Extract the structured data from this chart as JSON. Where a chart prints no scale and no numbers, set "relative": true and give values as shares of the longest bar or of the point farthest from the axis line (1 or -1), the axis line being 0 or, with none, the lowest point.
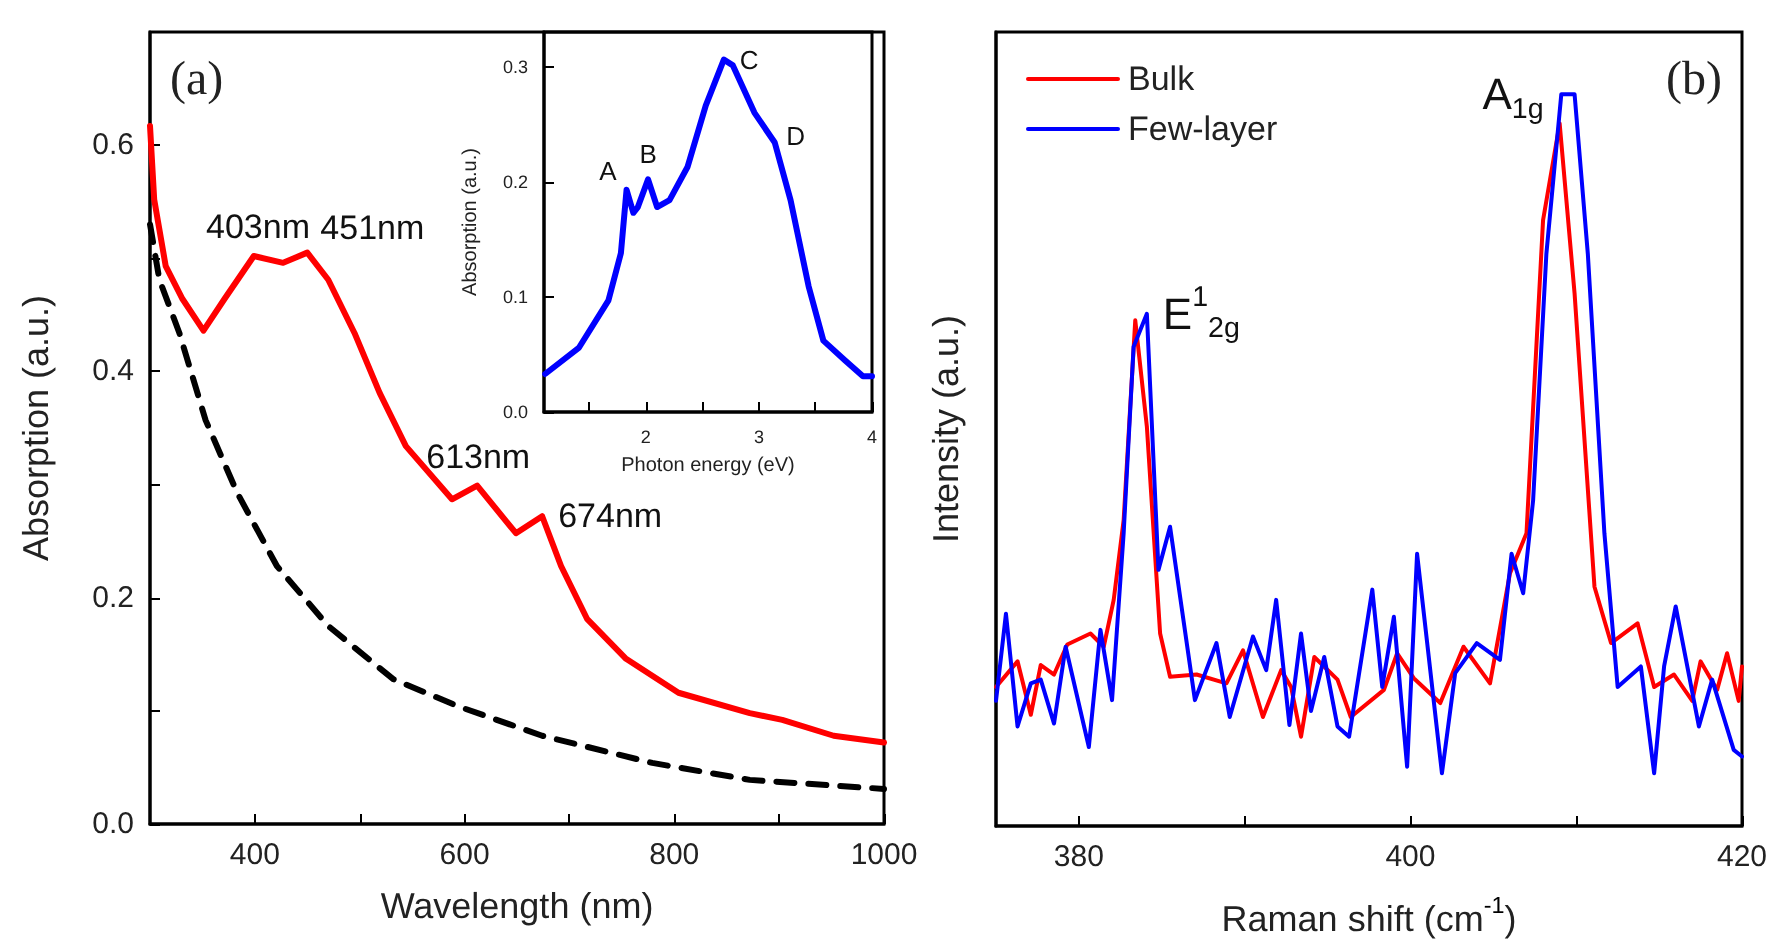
{
  "chart_data": [
    {
      "type": "line",
      "xlabel": "Wavelength (nm)",
      "ylabel": "Absorption (a.u.)",
      "xlim": [
        300,
        1000
      ],
      "ylim": [
        0,
        0.7
      ],
      "xticks": [
        400,
        {
          "value": 500,
          "label": null
        },
        600,
        {
          "value": 700,
          "label": null
        },
        800,
        {
          "value": 900,
          "label": null
        },
        1000
      ],
      "yticks": [
        {
          "value": 0,
          "label": "0.0"
        },
        {
          "value": 0.1,
          "label": null
        },
        0.2,
        {
          "value": 0.3,
          "label": null
        },
        0.4,
        {
          "value": 0.5,
          "label": null
        },
        0.6
      ],
      "series": [
        {
          "color": "#ff0000",
          "line_style": "solid",
          "x": [
            300,
            304,
            315,
            331,
            351,
            371,
            399,
            427,
            450,
            470,
            495,
            519,
            544,
            588,
            612,
            649,
            674,
            692,
            717,
            754,
            804,
            872,
            903,
            952,
            1000
          ],
          "values": [
            0.617,
            0.552,
            0.493,
            0.464,
            0.436,
            0.464,
            0.502,
            0.496,
            0.505,
            0.481,
            0.434,
            0.381,
            0.334,
            0.287,
            0.299,
            0.257,
            0.272,
            0.228,
            0.181,
            0.146,
            0.116,
            0.098,
            0.092,
            0.078,
            0.072
          ]
        },
        {
          "color": "#000000",
          "line_style": "dashed",
          "x": [
            300,
            309,
            328,
            353,
            383,
            421,
            470,
            532,
            594,
            674,
            779,
            872,
            1000
          ],
          "values": [
            0.53,
            0.481,
            0.434,
            0.357,
            0.293,
            0.228,
            0.175,
            0.128,
            0.104,
            0.078,
            0.054,
            0.039,
            0.031
          ]
        }
      ],
      "annotations": [
        "(a)",
        {
          "text": "403nm",
          "x": 403,
          "y": 0.502
        },
        {
          "text": "451nm",
          "x": 451,
          "y": 0.505
        },
        {
          "text": "613nm",
          "x": 613,
          "y": 0.299
        },
        {
          "text": "674nm",
          "x": 674,
          "y": 0.272
        }
      ]
    },
    {
      "type": "line",
      "xlabel": "Photon energy (eV)",
      "ylabel": "Absorption (a.u.)",
      "xlim": [
        1.1,
        4
      ],
      "ylim": [
        0,
        0.33
      ],
      "xticks": [
        {
          "value": 1.5,
          "label": null
        },
        2,
        {
          "value": 2.5,
          "label": null
        },
        3,
        {
          "value": 3.5,
          "label": null
        },
        4
      ],
      "yticks": [
        {
          "value": 0,
          "label": "0.0"
        },
        0.1,
        0.2,
        0.3
      ],
      "series": [
        {
          "color": "#0000ff",
          "x": [
            1.11,
            1.41,
            1.67,
            1.78,
            1.83,
            1.89,
            1.93,
            2.02,
            2.1,
            2.21,
            2.37,
            2.53,
            2.69,
            2.77,
            2.96,
            3.14,
            3.28,
            3.44,
            3.57,
            3.76,
            3.92,
            4.0
          ],
          "values": [
            0.033,
            0.056,
            0.097,
            0.138,
            0.193,
            0.173,
            0.178,
            0.202,
            0.178,
            0.184,
            0.213,
            0.266,
            0.306,
            0.301,
            0.26,
            0.234,
            0.184,
            0.109,
            0.062,
            0.045,
            0.031,
            0.031
          ]
        }
      ],
      "annotations": [
        {
          "text": "A",
          "x": 1.83,
          "y": 0.193
        },
        {
          "text": "B",
          "x": 2.02,
          "y": 0.202
        },
        {
          "text": "C",
          "x": 2.69,
          "y": 0.306
        },
        {
          "text": "D",
          "x": 3.1,
          "y": 0.24
        }
      ]
    },
    {
      "type": "line",
      "relative": true,
      "xlabel": "Raman shift (cm$^{-1}$)",
      "ylabel": "Intensity (a.u.)",
      "xlim": [
        375,
        420
      ],
      "xticks": [
        380,
        {
          "value": 390,
          "label": null
        },
        400,
        {
          "value": 410,
          "label": null
        },
        420
      ],
      "legend": "top left",
      "series": [
        {
          "name": "Bulk",
          "color": "#ff0000",
          "x": [
            375,
            376.3,
            377.1,
            377.7,
            378.5,
            379.3,
            380.7,
            381.5,
            382.1,
            382.7,
            383.4,
            384.1,
            384.9,
            385.5,
            387.1,
            388.9,
            389.9,
            391.1,
            392.2,
            392.8,
            393.4,
            394.2,
            395.6,
            396.4,
            398.4,
            399.2,
            400.2,
            401.8,
            403.2,
            404.8,
            406,
            407,
            408,
            409,
            409.9,
            411.1,
            412.1,
            413.7,
            414.7,
            415.9,
            417,
            417.5,
            418.5,
            419.1,
            419.8,
            420
          ],
          "values": [
            0.19,
            0.225,
            0.152,
            0.22,
            0.207,
            0.248,
            0.263,
            0.245,
            0.309,
            0.418,
            0.691,
            0.546,
            0.263,
            0.204,
            0.207,
            0.195,
            0.24,
            0.149,
            0.213,
            0.19,
            0.122,
            0.231,
            0.2,
            0.149,
            0.186,
            0.236,
            0.202,
            0.168,
            0.245,
            0.195,
            0.345,
            0.4,
            0.828,
            0.96,
            0.728,
            0.327,
            0.25,
            0.277,
            0.19,
            0.207,
            0.171,
            0.225,
            0.186,
            0.236,
            0.171,
            0.218
          ]
        },
        {
          "name": "Few-layer",
          "color": "#0000ff",
          "x": [
            375,
            375.6,
            376.3,
            377.1,
            377.7,
            378.5,
            379.2,
            380.6,
            381.3,
            382,
            382.7,
            383.3,
            384.1,
            384.8,
            385.5,
            387,
            388.3,
            389.1,
            390.5,
            391.3,
            391.9,
            392.7,
            393.4,
            394,
            394.8,
            395.6,
            396.3,
            397.7,
            398.3,
            399,
            399.8,
            400.4,
            401.9,
            402.7,
            404,
            405.4,
            406.1,
            406.8,
            407.4,
            408.2,
            409.1,
            409.9,
            410.7,
            411.7,
            412.5,
            413.9,
            414.7,
            415.3,
            416,
            417.4,
            418.2,
            419.5,
            420
          ],
          "values": [
            0.171,
            0.29,
            0.136,
            0.195,
            0.2,
            0.14,
            0.245,
            0.108,
            0.268,
            0.172,
            0.4,
            0.655,
            0.7,
            0.35,
            0.409,
            0.172,
            0.25,
            0.149,
            0.259,
            0.213,
            0.309,
            0.138,
            0.263,
            0.157,
            0.231,
            0.136,
            0.122,
            0.323,
            0.19,
            0.286,
            0.081,
            0.372,
            0.072,
            0.209,
            0.25,
            0.227,
            0.372,
            0.318,
            0.445,
            0.782,
            1,
            1,
            0.782,
            0.4,
            0.19,
            0.218,
            0.072,
            0.218,
            0.3,
            0.136,
            0.2,
            0.104,
            0.095
          ]
        }
      ],
      "annotations": [
        "(b)",
        {
          "text": "E$^{1}$$_{2g}$",
          "x": 384.1,
          "y": 0.7
        },
        {
          "text": "A$_{1g}$",
          "x": 409,
          "y": 1
        }
      ]
    }
  ]
}
